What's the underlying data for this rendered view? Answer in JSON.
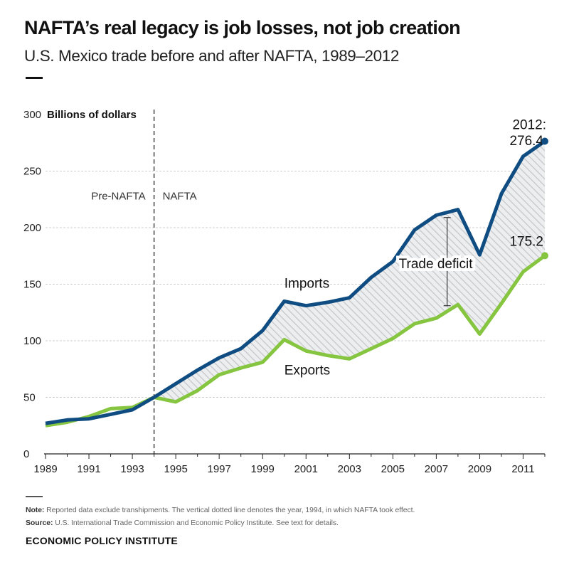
{
  "header": {
    "title": "NAFTA’s real legacy is job losses, not job creation",
    "subtitle": "U.S. Mexico trade before and after NAFTA, 1989–2012"
  },
  "footer": {
    "note_label": "Note:",
    "note_text": " Reported data exclude transhipments. The vertical dotted line denotes the year, 1994, in which NAFTA took effect.",
    "source_label": "Source:",
    "source_text": " U.S. International Trade Commission and Economic Policy Institute. See text for details.",
    "publisher": "ECONOMIC POLICY INSTITUTE"
  },
  "colors": {
    "imports": "#0f4c81",
    "exports": "#86c540",
    "grid": "#cfcfcf",
    "hatch": "#c4c6c9"
  },
  "chart_data": {
    "type": "line",
    "unit_label": "Billions of dollars",
    "ylim": [
      0,
      300
    ],
    "y_ticks": [
      0,
      50,
      100,
      150,
      200,
      250,
      300
    ],
    "xlim": [
      1989,
      2012
    ],
    "x_ticks": [
      1989,
      1991,
      1993,
      1995,
      1997,
      1999,
      2001,
      2003,
      2005,
      2007,
      2009,
      2011
    ],
    "grid": "horizontal",
    "x": [
      1989,
      1990,
      1991,
      1992,
      1993,
      1994,
      1995,
      1996,
      1997,
      1998,
      1999,
      2000,
      2001,
      2002,
      2003,
      2004,
      2005,
      2006,
      2007,
      2008,
      2009,
      2010,
      2011,
      2012
    ],
    "series": [
      {
        "name": "Imports",
        "values": [
          27,
          30,
          31,
          35,
          39,
          50,
          62,
          74,
          85,
          93,
          109,
          135,
          131,
          134,
          138,
          156,
          170,
          198,
          211,
          216,
          176,
          230,
          263,
          276.4
        ]
      },
      {
        "name": "Exports",
        "values": [
          25,
          28,
          33,
          40,
          41,
          50,
          46,
          56,
          70,
          76,
          81,
          101,
          91,
          87,
          84,
          93,
          102,
          115,
          120,
          132,
          106,
          133,
          161,
          175.2
        ]
      }
    ],
    "annotations": {
      "nafta_year": 1994,
      "pre_label": "Pre-NAFTA",
      "post_label": "NAFTA",
      "deficit_label": "Trade deficit",
      "deficit_year": 2007.5,
      "deficit_range": [
        131,
        209
      ],
      "imports_end_label": "2012:",
      "imports_end_value": "276.4",
      "exports_end_value": "175.2"
    }
  }
}
